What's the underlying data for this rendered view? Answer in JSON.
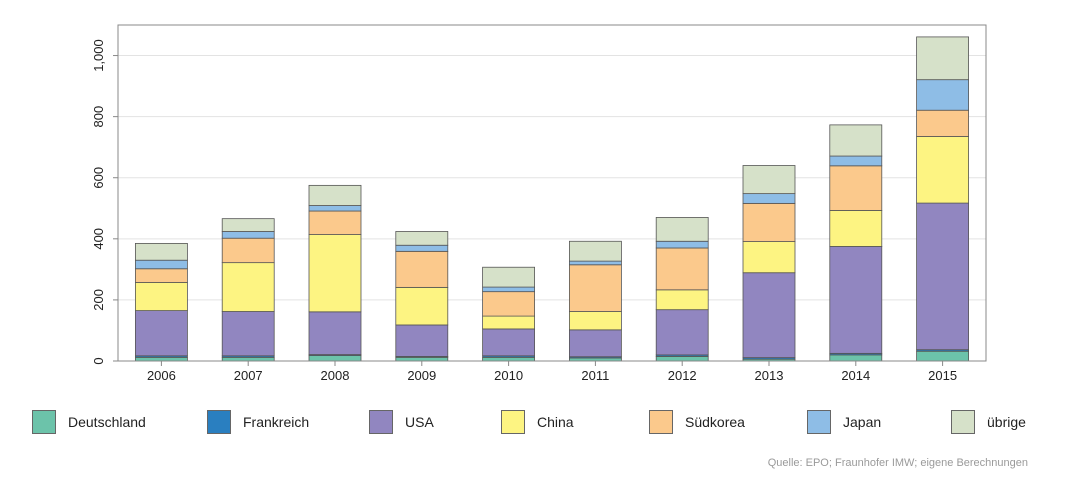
{
  "chart_data": {
    "type": "bar",
    "stacked": true,
    "categories": [
      "2006",
      "2007",
      "2008",
      "2009",
      "2010",
      "2011",
      "2012",
      "2013",
      "2014",
      "2015"
    ],
    "series": [
      {
        "name": "Deutschland",
        "color": "#6cc3aa",
        "values": [
          12,
          12,
          18,
          12,
          12,
          10,
          15,
          6,
          20,
          32
        ]
      },
      {
        "name": "Frankreich",
        "color": "#2a7fc0",
        "values": [
          5,
          5,
          3,
          3,
          5,
          4,
          5,
          5,
          5,
          5
        ]
      },
      {
        "name": "USA",
        "color": "#9186c0",
        "values": [
          148,
          145,
          140,
          103,
          88,
          88,
          148,
          278,
          350,
          480
        ]
      },
      {
        "name": "China",
        "color": "#fdf482",
        "values": [
          92,
          160,
          253,
          123,
          42,
          60,
          65,
          102,
          118,
          218
        ]
      },
      {
        "name": "Südkorea",
        "color": "#fbc98c",
        "values": [
          45,
          80,
          77,
          118,
          80,
          153,
          137,
          125,
          146,
          86
        ]
      },
      {
        "name": "Japan",
        "color": "#8ebde6",
        "values": [
          28,
          22,
          18,
          20,
          15,
          12,
          22,
          32,
          32,
          100
        ]
      },
      {
        "name": "übrige",
        "color": "#d6e1c9",
        "values": [
          55,
          42,
          66,
          45,
          65,
          65,
          78,
          92,
          102,
          140
        ]
      }
    ],
    "yticks": [
      "0",
      "200",
      "400",
      "600",
      "800",
      "1,000"
    ],
    "ylim": [
      0,
      1100
    ],
    "xlabel": "",
    "ylabel": "",
    "grid": true,
    "legend_position": "bottom"
  },
  "source_text": "Quelle: EPO; Fraunhofer IMW; eigene Berechnungen"
}
